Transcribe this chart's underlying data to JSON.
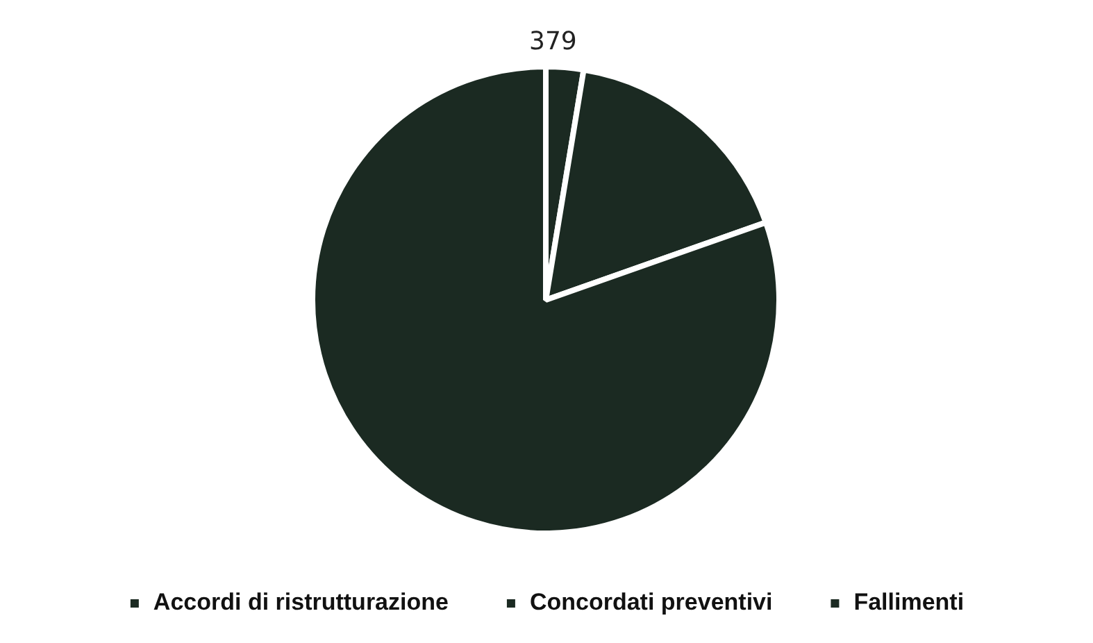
{
  "chart_data": {
    "type": "pie",
    "categories": [
      "Accordi di ristrutturazione",
      "Concordati preventivi",
      "Fallimenti"
    ],
    "values": [
      379,
      2480,
      11720
    ],
    "value_labels": [
      "379",
      null,
      null
    ],
    "colors": [
      "#1b2a22",
      "#1b2a22",
      "#1b2a22"
    ],
    "legend": "bottom"
  }
}
